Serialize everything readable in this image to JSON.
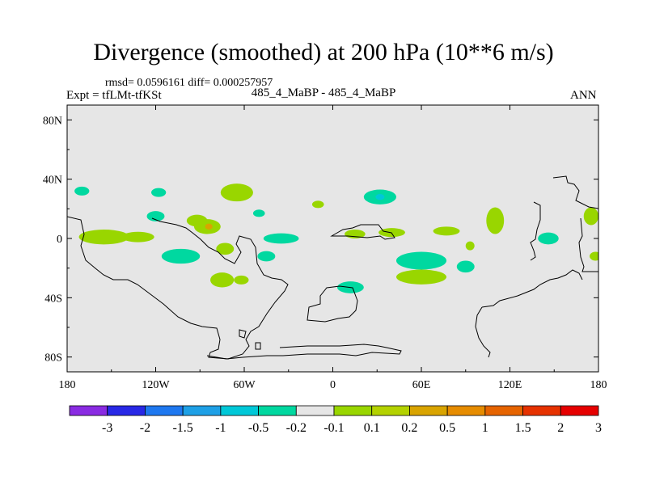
{
  "header": {
    "title": "Divergence (smoothed) at 200 hPa (10**6 m/s)",
    "stats": "rmsd= 0.0596161 diff= 0.000257957",
    "experiment": "Expt = tfLMt-tfKSt",
    "case": "485_4_MaBP - 485_4_MaBP",
    "season": "ANN"
  },
  "colors": {
    "background_field": "#e6e6e6",
    "coast": "#000000",
    "positive_light": "#99d600",
    "negative_light": "#00d8a0",
    "negative_mid": "#00c8d8",
    "positive_mid": "#d9a400"
  },
  "chart_data": {
    "type": "heatmap",
    "projection": "cylindrical-equidistant",
    "title": "Divergence (smoothed) at 200 hPa (10**6 m/s)",
    "xlim": [
      -180,
      180
    ],
    "ylim": [
      -90,
      90
    ],
    "x_ticks": [
      {
        "value": -180,
        "label": "180"
      },
      {
        "value": -120,
        "label": "120W"
      },
      {
        "value": -60,
        "label": "60W"
      },
      {
        "value": 0,
        "label": "0"
      },
      {
        "value": 60,
        "label": "60E"
      },
      {
        "value": 120,
        "label": "120E"
      },
      {
        "value": 180,
        "label": "180"
      }
    ],
    "y_ticks": [
      {
        "value": 80,
        "label": "80N"
      },
      {
        "value": 40,
        "label": "40N"
      },
      {
        "value": 0,
        "label": "0"
      },
      {
        "value": -40,
        "label": "40S"
      },
      {
        "value": -80,
        "label": "80S"
      }
    ],
    "colorbar": {
      "colors": [
        "#8a2be2",
        "#2828e6",
        "#1e78f0",
        "#1ea0e6",
        "#00c8d8",
        "#00d8a0",
        "#e6e6e6",
        "#99d600",
        "#b4d200",
        "#d9a400",
        "#e68c00",
        "#e66400",
        "#e63200",
        "#e60000"
      ],
      "labels": [
        "-3",
        "-2",
        "-1.5",
        "-1",
        "-0.5",
        "-0.2",
        "-0.1",
        "0.1",
        "0.2",
        "0.5",
        "1",
        "1.5",
        "2",
        "3"
      ]
    },
    "anomalies": [
      {
        "lon": -170,
        "lat": 32,
        "rlon": 5,
        "rlat": 3,
        "sign": -1,
        "level": 1
      },
      {
        "lon": -155,
        "lat": 1,
        "rlon": 17,
        "rlat": 5,
        "sign": 1,
        "level": 1
      },
      {
        "lon": -132,
        "lat": 1,
        "rlon": 11,
        "rlat": 3.5,
        "sign": 1,
        "level": 1
      },
      {
        "lon": -120,
        "lat": 15,
        "rlon": 6,
        "rlat": 3.5,
        "sign": -1,
        "level": 1
      },
      {
        "lon": -118,
        "lat": 31,
        "rlon": 5,
        "rlat": 3,
        "sign": -1,
        "level": 1
      },
      {
        "lon": -92,
        "lat": 12,
        "rlon": 7,
        "rlat": 4,
        "sign": 1,
        "level": 1
      },
      {
        "lon": -85,
        "lat": 8,
        "rlon": 9,
        "rlat": 5,
        "sign": 1,
        "level": 1
      },
      {
        "lon": -84,
        "lat": 8,
        "rlon": 2.5,
        "rlat": 2,
        "sign": 1,
        "level": 3
      },
      {
        "lon": -103,
        "lat": -12,
        "rlon": 13,
        "rlat": 5,
        "sign": -1,
        "level": 1
      },
      {
        "lon": -73,
        "lat": -7,
        "rlon": 6,
        "rlat": 4,
        "sign": 1,
        "level": 1
      },
      {
        "lon": -65,
        "lat": 31,
        "rlon": 11,
        "rlat": 6,
        "sign": 1,
        "level": 1
      },
      {
        "lon": -75,
        "lat": -28,
        "rlon": 8,
        "rlat": 5,
        "sign": 1,
        "level": 1
      },
      {
        "lon": -62,
        "lat": -28,
        "rlon": 5,
        "rlat": 3,
        "sign": 1,
        "level": 1
      },
      {
        "lon": -50,
        "lat": 17,
        "rlon": 4,
        "rlat": 2.5,
        "sign": -1,
        "level": 1
      },
      {
        "lon": -35,
        "lat": 0,
        "rlon": 12,
        "rlat": 3.5,
        "sign": -1,
        "level": 1
      },
      {
        "lon": -45,
        "lat": -12,
        "rlon": 6,
        "rlat": 3.5,
        "sign": -1,
        "level": 1
      },
      {
        "lon": -10,
        "lat": 23,
        "rlon": 4,
        "rlat": 2.5,
        "sign": 1,
        "level": 1
      },
      {
        "lon": 32,
        "lat": 28,
        "rlon": 11,
        "rlat": 5,
        "sign": -1,
        "level": 1
      },
      {
        "lon": 32,
        "lat": 28,
        "rlon": 3,
        "rlat": 2,
        "sign": -1,
        "level": 2
      },
      {
        "lon": 15,
        "lat": 3,
        "rlon": 7,
        "rlat": 3,
        "sign": 1,
        "level": 1
      },
      {
        "lon": 40,
        "lat": 4,
        "rlon": 9,
        "rlat": 3,
        "sign": 1,
        "level": 1
      },
      {
        "lon": 77,
        "lat": 5,
        "rlon": 9,
        "rlat": 3,
        "sign": 1,
        "level": 1
      },
      {
        "lon": 60,
        "lat": -15,
        "rlon": 17,
        "rlat": 6,
        "sign": -1,
        "level": 1
      },
      {
        "lon": 60,
        "lat": -26,
        "rlon": 17,
        "rlat": 5,
        "sign": 1,
        "level": 1
      },
      {
        "lon": 12,
        "lat": -33,
        "rlon": 9,
        "rlat": 4,
        "sign": -1,
        "level": 1
      },
      {
        "lon": 90,
        "lat": -19,
        "rlon": 6,
        "rlat": 4,
        "sign": -1,
        "level": 1
      },
      {
        "lon": 93,
        "lat": -5,
        "rlon": 3,
        "rlat": 3,
        "sign": 1,
        "level": 1
      },
      {
        "lon": 110,
        "lat": 12,
        "rlon": 6,
        "rlat": 9,
        "sign": 1,
        "level": 1
      },
      {
        "lon": 146,
        "lat": 0,
        "rlon": 7,
        "rlat": 4,
        "sign": -1,
        "level": 1
      },
      {
        "lon": 175,
        "lat": 15,
        "rlon": 5,
        "rlat": 6,
        "sign": 1,
        "level": 1
      },
      {
        "lon": 178,
        "lat": -12,
        "rlon": 4,
        "rlat": 3,
        "sign": 1,
        "level": 1
      }
    ]
  }
}
